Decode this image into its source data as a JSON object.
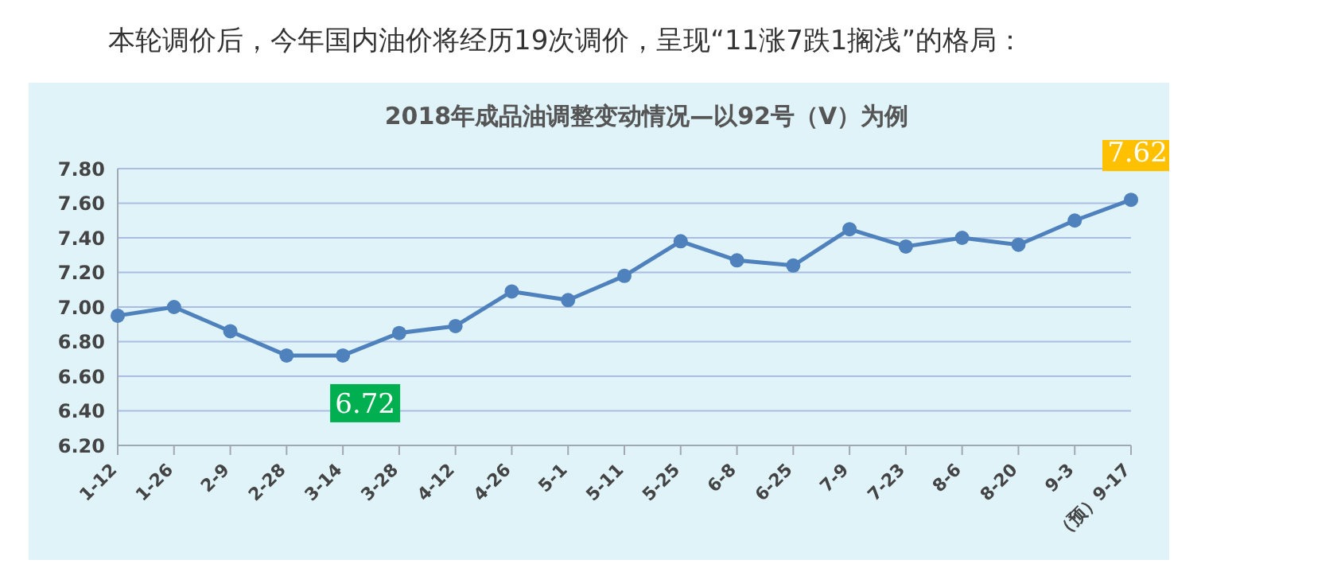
{
  "chart_data": {
    "type": "line",
    "title": "2018年成品油调整变动情况—以92号（V）为例",
    "annotations": [
      "本轮调价后，今年国内油价将经历19次调价，呈现“11涨7跌1搁浅”的格局："
    ],
    "categories": [
      "1-12",
      "1-26",
      "2-9",
      "2-28",
      "3-14",
      "3-28",
      "4-12",
      "4-26",
      "5-1",
      "5-11",
      "5-25",
      "6-8",
      "6-25",
      "7-9",
      "7-23",
      "8-6",
      "8-20",
      "9-3",
      "（预）9-17"
    ],
    "series": [
      {
        "color": "#4f81bd",
        "values": [
          6.95,
          7.0,
          6.86,
          6.72,
          6.72,
          6.85,
          6.89,
          7.09,
          7.04,
          7.18,
          7.38,
          7.27,
          7.24,
          7.45,
          7.35,
          7.4,
          7.36,
          7.5,
          7.62
        ],
        "value_labels": [
          null,
          null,
          null,
          null,
          "6.72",
          null,
          null,
          null,
          null,
          null,
          null,
          null,
          null,
          null,
          null,
          null,
          null,
          null,
          "7.62"
        ]
      }
    ],
    "ylim": [
      6.2,
      7.8
    ],
    "yticks": [
      {
        "value": 6.2,
        "label": "6.20"
      },
      {
        "value": 6.4,
        "label": "6.40"
      },
      {
        "value": 6.6,
        "label": "6.60"
      },
      {
        "value": 6.8,
        "label": "6.80"
      },
      {
        "value": 7.0,
        "label": "7.00"
      },
      {
        "value": 7.2,
        "label": "7.20"
      },
      {
        "value": 7.4,
        "label": "7.40"
      },
      {
        "value": 7.6,
        "label": "7.60"
      },
      {
        "value": 7.8,
        "label": "7.80"
      }
    ],
    "grid": "y",
    "marker": "circle",
    "line_style": "solid",
    "legend": false
  }
}
